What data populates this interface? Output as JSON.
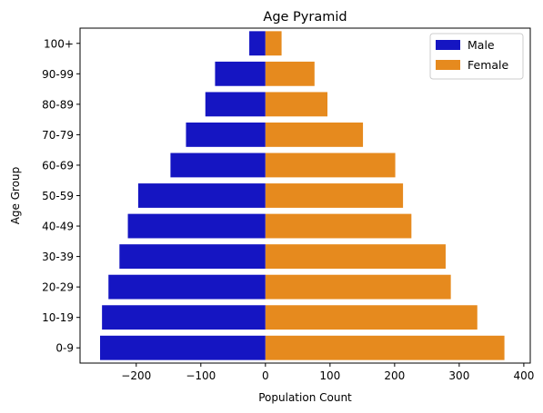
{
  "chart_data": {
    "type": "bar",
    "orientation": "horizontal",
    "title": "Age Pyramid",
    "xlabel": "Population Count",
    "ylabel": "Age Group",
    "categories": [
      "100+",
      "90-99",
      "80-89",
      "70-79",
      "60-69",
      "50-59",
      "40-49",
      "30-39",
      "20-29",
      "10-19",
      "0-9"
    ],
    "series": [
      {
        "name": "Male",
        "color": "#1515c2",
        "values": [
          -25,
          -78,
          -93,
          -123,
          -147,
          -197,
          -213,
          -226,
          -243,
          -253,
          -256
        ]
      },
      {
        "name": "Female",
        "color": "#e68a1e",
        "values": [
          25,
          76,
          96,
          151,
          201,
          213,
          226,
          279,
          287,
          328,
          370
        ]
      }
    ],
    "xlim": [
      -287,
      410
    ],
    "xticks": [
      -200,
      -100,
      0,
      100,
      200,
      300,
      400
    ],
    "xtick_labels": [
      "−200",
      "−100",
      "0",
      "100",
      "200",
      "300",
      "400"
    ],
    "grid": false,
    "legend_position": "top-right"
  }
}
